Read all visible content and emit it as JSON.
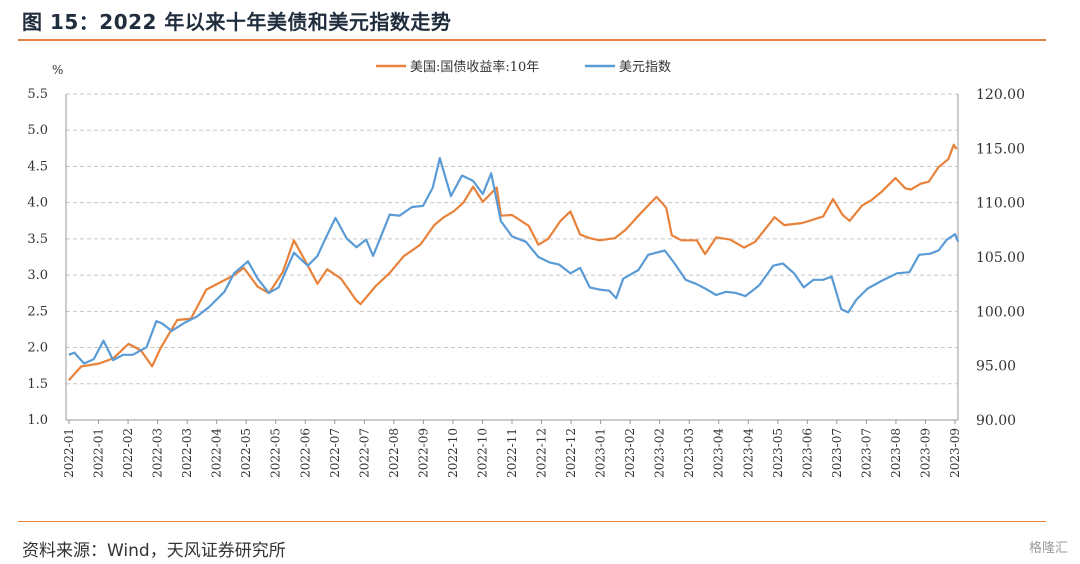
{
  "header": {
    "title": "图 15：2022 年以来十年美债和美元指数走势"
  },
  "footer": {
    "source": "资料来源：Wind，天风证券研究所",
    "watermark": "格隆汇"
  },
  "colors": {
    "accent": "#e8823a",
    "orange_series": "#e8823a",
    "blue_series": "#5b9bd5"
  },
  "chart_data": {
    "type": "line",
    "y_left_unit": "%",
    "ylim_left": [
      1.0,
      5.5
    ],
    "ylim_right": [
      90,
      120
    ],
    "yticks_left": [
      "1.0",
      "1.5",
      "2.0",
      "2.5",
      "3.0",
      "3.5",
      "4.0",
      "4.5",
      "5.0",
      "5.5"
    ],
    "yticks_right": [
      "90.00",
      "95.00",
      "100.00",
      "105.00",
      "110.00",
      "115.00",
      "120.00"
    ],
    "x_tick_labels": [
      "2022-01",
      "2022-01",
      "2022-02",
      "2022-03",
      "2022-03",
      "2022-04",
      "2022-05",
      "2022-05",
      "2022-06",
      "2022-07",
      "2022-07",
      "2022-08",
      "2022-09",
      "2022-10",
      "2022-10",
      "2022-11",
      "2022-12",
      "2022-12",
      "2023-01",
      "2023-02",
      "2023-02",
      "2023-03",
      "2023-04",
      "2023-04",
      "2023-05",
      "2023-06",
      "2023-07",
      "2023-07",
      "2023-08",
      "2023-09",
      "2023-09"
    ],
    "x_range": [
      "2022-01-01",
      "2023-10-05"
    ],
    "grid": "horizontal-dashed",
    "legend_position": "top-center",
    "series": [
      {
        "name": "美国:国债收益率:10年",
        "axis": "left",
        "color": "#e8823a",
        "points": [
          [
            "2022-01-03",
            1.55
          ],
          [
            "2022-01-12",
            1.74
          ],
          [
            "2022-01-25",
            1.78
          ],
          [
            "2022-02-04",
            1.85
          ],
          [
            "2022-02-15",
            2.05
          ],
          [
            "2022-02-24",
            1.96
          ],
          [
            "2022-03-04",
            1.74
          ],
          [
            "2022-03-10",
            1.99
          ],
          [
            "2022-03-22",
            2.38
          ],
          [
            "2022-04-01",
            2.4
          ],
          [
            "2022-04-12",
            2.8
          ],
          [
            "2022-04-22",
            2.9
          ],
          [
            "2022-05-02",
            3.0
          ],
          [
            "2022-05-09",
            3.1
          ],
          [
            "2022-05-19",
            2.84
          ],
          [
            "2022-05-27",
            2.75
          ],
          [
            "2022-06-06",
            3.04
          ],
          [
            "2022-06-14",
            3.48
          ],
          [
            "2022-06-24",
            3.13
          ],
          [
            "2022-07-01",
            2.88
          ],
          [
            "2022-07-08",
            3.08
          ],
          [
            "2022-07-18",
            2.95
          ],
          [
            "2022-07-29",
            2.65
          ],
          [
            "2022-08-01",
            2.6
          ],
          [
            "2022-08-12",
            2.85
          ],
          [
            "2022-08-22",
            3.03
          ],
          [
            "2022-09-01",
            3.26
          ],
          [
            "2022-09-13",
            3.42
          ],
          [
            "2022-09-23",
            3.69
          ],
          [
            "2022-09-30",
            3.8
          ],
          [
            "2022-10-07",
            3.88
          ],
          [
            "2022-10-14",
            4.0
          ],
          [
            "2022-10-21",
            4.22
          ],
          [
            "2022-10-28",
            4.01
          ],
          [
            "2022-11-07",
            4.21
          ],
          [
            "2022-11-10",
            3.82
          ],
          [
            "2022-11-18",
            3.83
          ],
          [
            "2022-11-30",
            3.68
          ],
          [
            "2022-12-07",
            3.42
          ],
          [
            "2022-12-14",
            3.5
          ],
          [
            "2022-12-23",
            3.75
          ],
          [
            "2022-12-30",
            3.88
          ],
          [
            "2023-01-06",
            3.56
          ],
          [
            "2023-01-13",
            3.51
          ],
          [
            "2023-01-20",
            3.48
          ],
          [
            "2023-01-31",
            3.51
          ],
          [
            "2023-02-08",
            3.63
          ],
          [
            "2023-02-17",
            3.82
          ],
          [
            "2023-03-02",
            4.08
          ],
          [
            "2023-03-09",
            3.93
          ],
          [
            "2023-03-13",
            3.55
          ],
          [
            "2023-03-20",
            3.48
          ],
          [
            "2023-03-31",
            3.48
          ],
          [
            "2023-04-06",
            3.29
          ],
          [
            "2023-04-14",
            3.52
          ],
          [
            "2023-04-24",
            3.49
          ],
          [
            "2023-05-04",
            3.38
          ],
          [
            "2023-05-12",
            3.46
          ],
          [
            "2023-05-26",
            3.8
          ],
          [
            "2023-06-02",
            3.69
          ],
          [
            "2023-06-15",
            3.72
          ],
          [
            "2023-06-30",
            3.81
          ],
          [
            "2023-07-07",
            4.05
          ],
          [
            "2023-07-14",
            3.83
          ],
          [
            "2023-07-19",
            3.75
          ],
          [
            "2023-07-28",
            3.96
          ],
          [
            "2023-08-04",
            4.04
          ],
          [
            "2023-08-11",
            4.15
          ],
          [
            "2023-08-21",
            4.34
          ],
          [
            "2023-08-28",
            4.2
          ],
          [
            "2023-09-01",
            4.18
          ],
          [
            "2023-09-08",
            4.26
          ],
          [
            "2023-09-14",
            4.29
          ],
          [
            "2023-09-21",
            4.49
          ],
          [
            "2023-09-28",
            4.6
          ],
          [
            "2023-10-02",
            4.8
          ],
          [
            "2023-10-04",
            4.74
          ]
        ]
      },
      {
        "name": "美元指数",
        "axis": "right",
        "color": "#5b9bd5",
        "points": [
          [
            "2022-01-03",
            96.0
          ],
          [
            "2022-01-07",
            96.2
          ],
          [
            "2022-01-14",
            95.2
          ],
          [
            "2022-01-21",
            95.6
          ],
          [
            "2022-01-28",
            97.3
          ],
          [
            "2022-02-04",
            95.5
          ],
          [
            "2022-02-11",
            96.0
          ],
          [
            "2022-02-18",
            96.0
          ],
          [
            "2022-02-28",
            96.7
          ],
          [
            "2022-03-07",
            99.1
          ],
          [
            "2022-03-11",
            98.9
          ],
          [
            "2022-03-18",
            98.2
          ],
          [
            "2022-03-28",
            99.0
          ],
          [
            "2022-04-05",
            99.5
          ],
          [
            "2022-04-14",
            100.4
          ],
          [
            "2022-04-25",
            101.8
          ],
          [
            "2022-05-02",
            103.5
          ],
          [
            "2022-05-12",
            104.6
          ],
          [
            "2022-05-19",
            103.0
          ],
          [
            "2022-05-27",
            101.7
          ],
          [
            "2022-06-03",
            102.2
          ],
          [
            "2022-06-14",
            105.4
          ],
          [
            "2022-06-24",
            104.2
          ],
          [
            "2022-07-01",
            105.1
          ],
          [
            "2022-07-06",
            106.5
          ],
          [
            "2022-07-14",
            108.6
          ],
          [
            "2022-07-22",
            106.7
          ],
          [
            "2022-07-29",
            105.9
          ],
          [
            "2022-08-05",
            106.6
          ],
          [
            "2022-08-10",
            105.1
          ],
          [
            "2022-08-22",
            108.9
          ],
          [
            "2022-08-29",
            108.8
          ],
          [
            "2022-09-07",
            109.6
          ],
          [
            "2022-09-15",
            109.7
          ],
          [
            "2022-09-22",
            111.4
          ],
          [
            "2022-09-27",
            114.1
          ],
          [
            "2022-10-05",
            110.6
          ],
          [
            "2022-10-13",
            112.5
          ],
          [
            "2022-10-21",
            112.0
          ],
          [
            "2022-10-28",
            110.8
          ],
          [
            "2022-11-03",
            112.7
          ],
          [
            "2022-11-10",
            108.3
          ],
          [
            "2022-11-18",
            106.9
          ],
          [
            "2022-11-28",
            106.4
          ],
          [
            "2022-12-07",
            105.0
          ],
          [
            "2022-12-15",
            104.5
          ],
          [
            "2022-12-22",
            104.3
          ],
          [
            "2022-12-30",
            103.5
          ],
          [
            "2023-01-06",
            104.0
          ],
          [
            "2023-01-13",
            102.2
          ],
          [
            "2023-01-20",
            102.0
          ],
          [
            "2023-01-27",
            101.9
          ],
          [
            "2023-02-01",
            101.2
          ],
          [
            "2023-02-06",
            103.0
          ],
          [
            "2023-02-17",
            103.8
          ],
          [
            "2023-02-24",
            105.2
          ],
          [
            "2023-03-08",
            105.6
          ],
          [
            "2023-03-15",
            104.4
          ],
          [
            "2023-03-23",
            102.9
          ],
          [
            "2023-03-31",
            102.5
          ],
          [
            "2023-04-06",
            102.1
          ],
          [
            "2023-04-14",
            101.5
          ],
          [
            "2023-04-21",
            101.8
          ],
          [
            "2023-04-28",
            101.7
          ],
          [
            "2023-05-05",
            101.4
          ],
          [
            "2023-05-15",
            102.4
          ],
          [
            "2023-05-25",
            104.2
          ],
          [
            "2023-06-01",
            104.4
          ],
          [
            "2023-06-09",
            103.5
          ],
          [
            "2023-06-16",
            102.2
          ],
          [
            "2023-06-23",
            102.9
          ],
          [
            "2023-06-30",
            102.9
          ],
          [
            "2023-07-06",
            103.2
          ],
          [
            "2023-07-13",
            100.2
          ],
          [
            "2023-07-18",
            99.9
          ],
          [
            "2023-07-24",
            101.1
          ],
          [
            "2023-08-01",
            102.1
          ],
          [
            "2023-08-11",
            102.8
          ],
          [
            "2023-08-22",
            103.5
          ],
          [
            "2023-08-31",
            103.6
          ],
          [
            "2023-09-07",
            105.2
          ],
          [
            "2023-09-15",
            105.3
          ],
          [
            "2023-09-21",
            105.6
          ],
          [
            "2023-09-27",
            106.6
          ],
          [
            "2023-10-03",
            107.1
          ],
          [
            "2023-10-05",
            106.4
          ]
        ]
      }
    ]
  }
}
